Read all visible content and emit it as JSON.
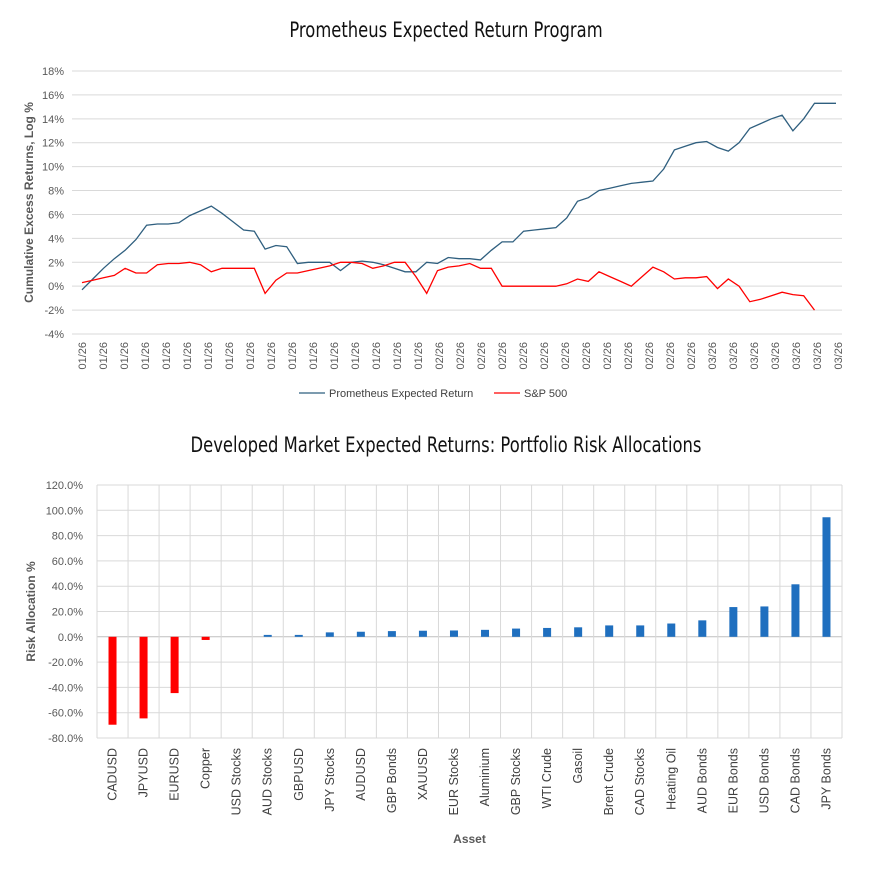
{
  "chart_data": [
    {
      "type": "line",
      "title": "Prometheus Expected Return Program",
      "ylabel": "Cumulative Excess Returns, Log %",
      "xlabel": "",
      "ylim": [
        -4,
        18
      ],
      "yticks": [
        -4,
        -2,
        0,
        2,
        4,
        6,
        8,
        10,
        12,
        14,
        16,
        18
      ],
      "ytick_labels": [
        "-4%",
        "-2%",
        "0%",
        "2%",
        "4%",
        "6%",
        "8%",
        "10%",
        "12%",
        "14%",
        "16%",
        "18%"
      ],
      "xtick_labels": [
        "01/26",
        "01/26",
        "01/26",
        "01/26",
        "01/26",
        "01/26",
        "01/26",
        "01/26",
        "01/26",
        "01/26",
        "01/26",
        "01/26",
        "01/26",
        "01/26",
        "01/26",
        "01/26",
        "01/26",
        "02/26",
        "02/26",
        "02/26",
        "02/26",
        "02/26",
        "02/26",
        "02/26",
        "02/26",
        "02/26",
        "02/26",
        "02/26",
        "02/26",
        "02/26",
        "03/26",
        "03/26",
        "03/26",
        "03/26",
        "03/26",
        "03/26",
        "03/26"
      ],
      "legend": [
        "Prometheus Expected Return",
        "S&P 500"
      ],
      "series": [
        {
          "name": "Prometheus Expected Return",
          "color": "#2f5f7f",
          "x": [
            0,
            1,
            2,
            3,
            4,
            5,
            6,
            7,
            8,
            9,
            10,
            11,
            12,
            13,
            14,
            15,
            16,
            17,
            18,
            19,
            20,
            21,
            22,
            23,
            24,
            25,
            26,
            27,
            28,
            29,
            30,
            31,
            32,
            33,
            34,
            35,
            36,
            37,
            38,
            39,
            40,
            41,
            42,
            43,
            44,
            45,
            46,
            47,
            48,
            49,
            50,
            51,
            52,
            53,
            54,
            55,
            56,
            57,
            58,
            59,
            60,
            61,
            62,
            63,
            64,
            65,
            66,
            67,
            68,
            69,
            70
          ],
          "values": [
            -0.3,
            0.6,
            1.5,
            2.3,
            3.0,
            3.9,
            5.1,
            5.2,
            5.2,
            5.3,
            5.9,
            6.3,
            6.7,
            6.1,
            5.4,
            4.7,
            4.6,
            3.1,
            3.4,
            3.3,
            1.9,
            2.0,
            2.0,
            2.0,
            1.3,
            2.0,
            2.1,
            2.0,
            1.8,
            1.5,
            1.2,
            1.2,
            2.0,
            1.9,
            2.4,
            2.3,
            2.3,
            2.2,
            3.0,
            3.7,
            3.7,
            4.6,
            4.7,
            4.8,
            4.9,
            5.7,
            7.1,
            7.4,
            8.0,
            8.2,
            8.4,
            8.6,
            8.7,
            8.8,
            9.8,
            11.4,
            11.7,
            12.0,
            12.1,
            11.6,
            11.3,
            12.0,
            13.2,
            13.6,
            14.0,
            14.3,
            13.0,
            14.0,
            15.3,
            15.3,
            15.3
          ]
        },
        {
          "name": "S&P 500",
          "color": "#ff0000",
          "x": [
            0,
            1,
            2,
            3,
            4,
            5,
            6,
            7,
            8,
            9,
            10,
            11,
            12,
            13,
            14,
            15,
            16,
            17,
            18,
            19,
            20,
            21,
            22,
            23,
            24,
            25,
            26,
            27,
            28,
            29,
            30,
            31,
            32,
            33,
            34,
            35,
            36,
            37,
            38,
            39,
            40,
            41,
            42,
            43,
            44,
            45,
            46,
            47,
            48,
            49,
            50,
            51,
            52,
            53,
            54,
            55,
            56,
            57,
            58,
            59,
            60,
            61,
            62,
            63,
            64,
            65,
            66,
            67,
            68
          ],
          "values": [
            0.3,
            0.5,
            0.7,
            0.9,
            1.5,
            1.1,
            1.1,
            1.8,
            1.9,
            1.9,
            2.0,
            1.8,
            1.2,
            1.5,
            1.5,
            1.5,
            1.5,
            -0.6,
            0.5,
            1.1,
            1.1,
            1.3,
            1.5,
            1.7,
            2.0,
            2.0,
            1.9,
            1.5,
            1.7,
            2.0,
            2.0,
            0.8,
            -0.6,
            1.3,
            1.6,
            1.7,
            1.9,
            1.5,
            1.5,
            0.0,
            0.0,
            0.0,
            0.0,
            0.0,
            0.0,
            0.2,
            0.6,
            0.4,
            1.2,
            0.8,
            0.4,
            0.0,
            0.8,
            1.6,
            1.2,
            0.6,
            0.7,
            0.7,
            0.8,
            -0.2,
            0.6,
            0.0,
            -1.3,
            -1.1,
            -0.8,
            -0.5,
            -0.7,
            -0.8,
            -2.0
          ]
        }
      ]
    },
    {
      "type": "bar",
      "title": "Developed Market Expected Returns: Portfolio Risk Allocations",
      "xlabel": "Asset",
      "ylabel": "Risk Allocation %",
      "ylim": [
        -80,
        120
      ],
      "yticks": [
        -80,
        -60,
        -40,
        -20,
        0,
        20,
        40,
        60,
        80,
        100,
        120
      ],
      "ytick_labels": [
        "-80.0%",
        "-60.0%",
        "-40.0%",
        "-20.0%",
        "0.0%",
        "20.0%",
        "40.0%",
        "60.0%",
        "80.0%",
        "100.0%",
        "120.0%"
      ],
      "categories": [
        "CADUSD",
        "JPYUSD",
        "EURUSD",
        "Copper",
        "USD Stocks",
        "AUD Stocks",
        "GBPUSD",
        "JPY Stocks",
        "AUDUSD",
        "GBP Bonds",
        "XAUUSD",
        "EUR Stocks",
        "Aluminium",
        "GBP Stocks",
        "WTI Crude",
        "Gasoil",
        "Brent Crude",
        "CAD Stocks",
        "Heating Oil",
        "AUD Bonds",
        "EUR Bonds",
        "USD Bonds",
        "CAD Bonds",
        "JPY Bonds"
      ],
      "values": [
        -69.5,
        -64.5,
        -44.5,
        -2.5,
        0.0,
        1.5,
        1.5,
        3.5,
        4.0,
        4.5,
        4.8,
        5.0,
        5.5,
        6.5,
        7.0,
        7.5,
        9.0,
        9.0,
        10.5,
        13.0,
        23.5,
        24.0,
        41.5,
        94.5
      ],
      "positive_color": "#1f6fbf",
      "negative_color": "#ff0000"
    }
  ]
}
